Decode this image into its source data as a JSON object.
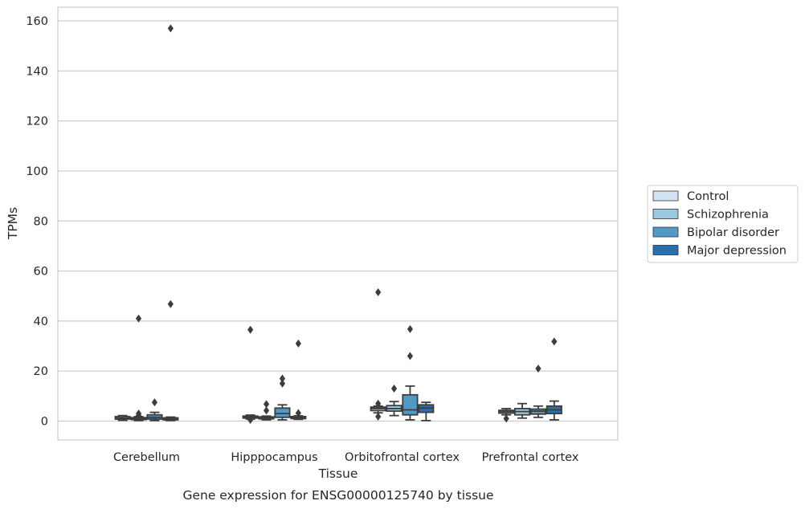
{
  "caption": "Gene expression for ENSG00000125740 by tissue",
  "chart_data": {
    "type": "box",
    "title": "",
    "xlabel": "Tissue",
    "ylabel": "TPMs",
    "ylim": [
      -7.5,
      165
    ],
    "yticks": [
      0,
      20,
      40,
      60,
      80,
      100,
      120,
      140,
      160
    ],
    "grid": true,
    "legend_position": "right",
    "categories": [
      "Cerebellum",
      "Hipppocampus",
      "Orbitofrontal cortex",
      "Prefrontal cortex"
    ],
    "series": [
      {
        "name": "Control",
        "color": "#d2e3f3",
        "boxes": [
          {
            "whisker_low": 0.3,
            "q1": 0.8,
            "median": 1.2,
            "q3": 1.8,
            "whisker_high": 2.2,
            "outliers": []
          },
          {
            "whisker_low": 0.8,
            "q1": 1.2,
            "median": 1.6,
            "q3": 2.0,
            "whisker_high": 2.4,
            "outliers": [
              36.5,
              0.5
            ]
          },
          {
            "whisker_low": 3.3,
            "q1": 4.2,
            "median": 5.0,
            "q3": 5.6,
            "whisker_high": 6.0,
            "outliers": [
              51.5,
              7.0,
              1.8
            ]
          },
          {
            "whisker_low": 2.5,
            "q1": 3.2,
            "median": 3.8,
            "q3": 4.3,
            "whisker_high": 5.0,
            "outliers": [
              1.0
            ]
          }
        ]
      },
      {
        "name": "Schizophrenia",
        "color": "#9ac8e0",
        "boxes": [
          {
            "whisker_low": 0.2,
            "q1": 0.6,
            "median": 1.0,
            "q3": 1.4,
            "whisker_high": 1.8,
            "outliers": [
              41.0,
              3.0,
              2.2
            ]
          },
          {
            "whisker_low": 0.5,
            "q1": 0.9,
            "median": 1.3,
            "q3": 1.7,
            "whisker_high": 2.0,
            "outliers": [
              6.8,
              4.2
            ]
          },
          {
            "whisker_low": 2.2,
            "q1": 4.0,
            "median": 5.0,
            "q3": 6.2,
            "whisker_high": 7.8,
            "outliers": [
              13.0
            ]
          },
          {
            "whisker_low": 1.2,
            "q1": 2.5,
            "median": 3.8,
            "q3": 5.0,
            "whisker_high": 7.0,
            "outliers": []
          }
        ]
      },
      {
        "name": "Bipolar disorder",
        "color": "#5399c6",
        "boxes": [
          {
            "whisker_low": 0.2,
            "q1": 0.8,
            "median": 1.5,
            "q3": 2.5,
            "whisker_high": 3.5,
            "outliers": [
              7.5
            ]
          },
          {
            "whisker_low": 0.5,
            "q1": 1.5,
            "median": 3.0,
            "q3": 5.2,
            "whisker_high": 6.5,
            "outliers": [
              17.0,
              15.0
            ]
          },
          {
            "whisker_low": 0.5,
            "q1": 2.5,
            "median": 4.5,
            "q3": 10.5,
            "whisker_high": 14.0,
            "outliers": [
              36.8,
              26.0
            ]
          },
          {
            "whisker_low": 1.5,
            "q1": 2.8,
            "median": 4.0,
            "q3": 4.8,
            "whisker_high": 6.0,
            "outliers": [
              21.0
            ]
          }
        ]
      },
      {
        "name": "Major depression",
        "color": "#2b6eae",
        "boxes": [
          {
            "whisker_low": 0.2,
            "q1": 0.5,
            "median": 0.9,
            "q3": 1.3,
            "whisker_high": 1.6,
            "outliers": [
              157.0,
              46.8
            ]
          },
          {
            "whisker_low": 0.7,
            "q1": 1.0,
            "median": 1.4,
            "q3": 1.8,
            "whisker_high": 2.1,
            "outliers": [
              31.0,
              3.2
            ]
          },
          {
            "whisker_low": 0.2,
            "q1": 3.5,
            "median": 5.2,
            "q3": 6.5,
            "whisker_high": 7.5,
            "outliers": []
          },
          {
            "whisker_low": 0.5,
            "q1": 3.0,
            "median": 4.5,
            "q3": 6.0,
            "whisker_high": 8.0,
            "outliers": [
              31.8
            ]
          }
        ]
      }
    ]
  }
}
